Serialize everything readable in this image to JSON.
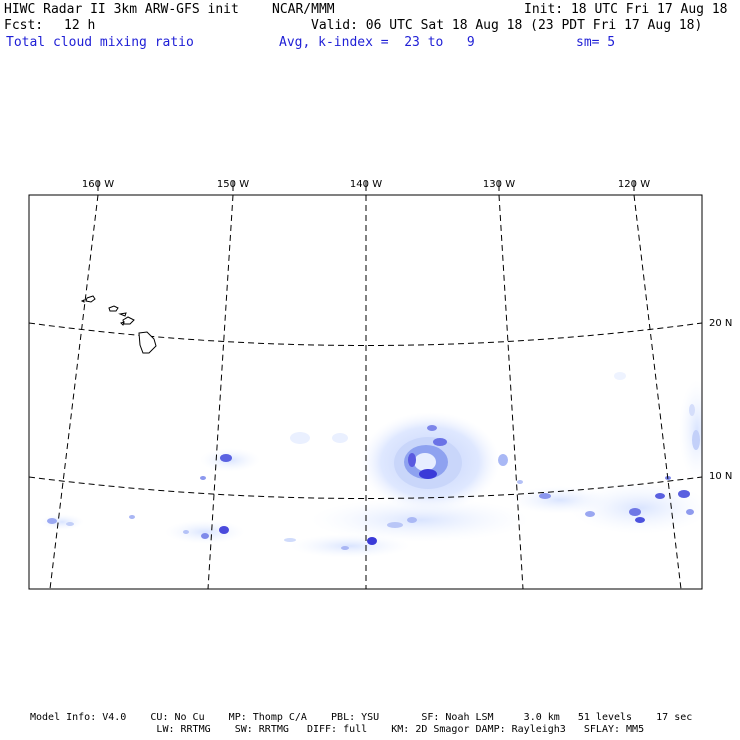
{
  "header": {
    "model_title": "HIWC Radar II 3km ARW-GFS init",
    "org": "NCAR/MMM",
    "init": "Init: 18 UTC Fri 17 Aug 18",
    "fcst_label": "Fcst:",
    "fcst_value": "12 h",
    "valid": "Valid: 06 UTC Sat 18 Aug 18 (23 PDT Fri 17 Aug 18)",
    "field": "Total cloud mixing ratio",
    "avg": "Avg, k-index =  23 to   9",
    "sm": "sm= 5"
  },
  "map": {
    "lon_labels": [
      "160 W",
      "150 W",
      "140 W",
      "130 W",
      "120 W"
    ],
    "lat_labels": [
      "20 N",
      "10 N"
    ],
    "colors": {
      "frame": "#000000",
      "coast": "#000000",
      "cloud_light": "#e8f0ff",
      "cloud_mid": "#b9c9f7",
      "cloud_dark": "#3a3ad8"
    }
  },
  "footer": {
    "line1": "Model Info: V4.0    CU: No Cu    MP: Thomp C/A    PBL: YSU       SF: Noah LSM     3.0 km   51 levels    17 sec",
    "line2": "                     LW: RRTMG    SW: RRTMG   DIFF: full    KM: 2D Smagor DAMP: Rayleigh3   SFLAY: MM5"
  }
}
